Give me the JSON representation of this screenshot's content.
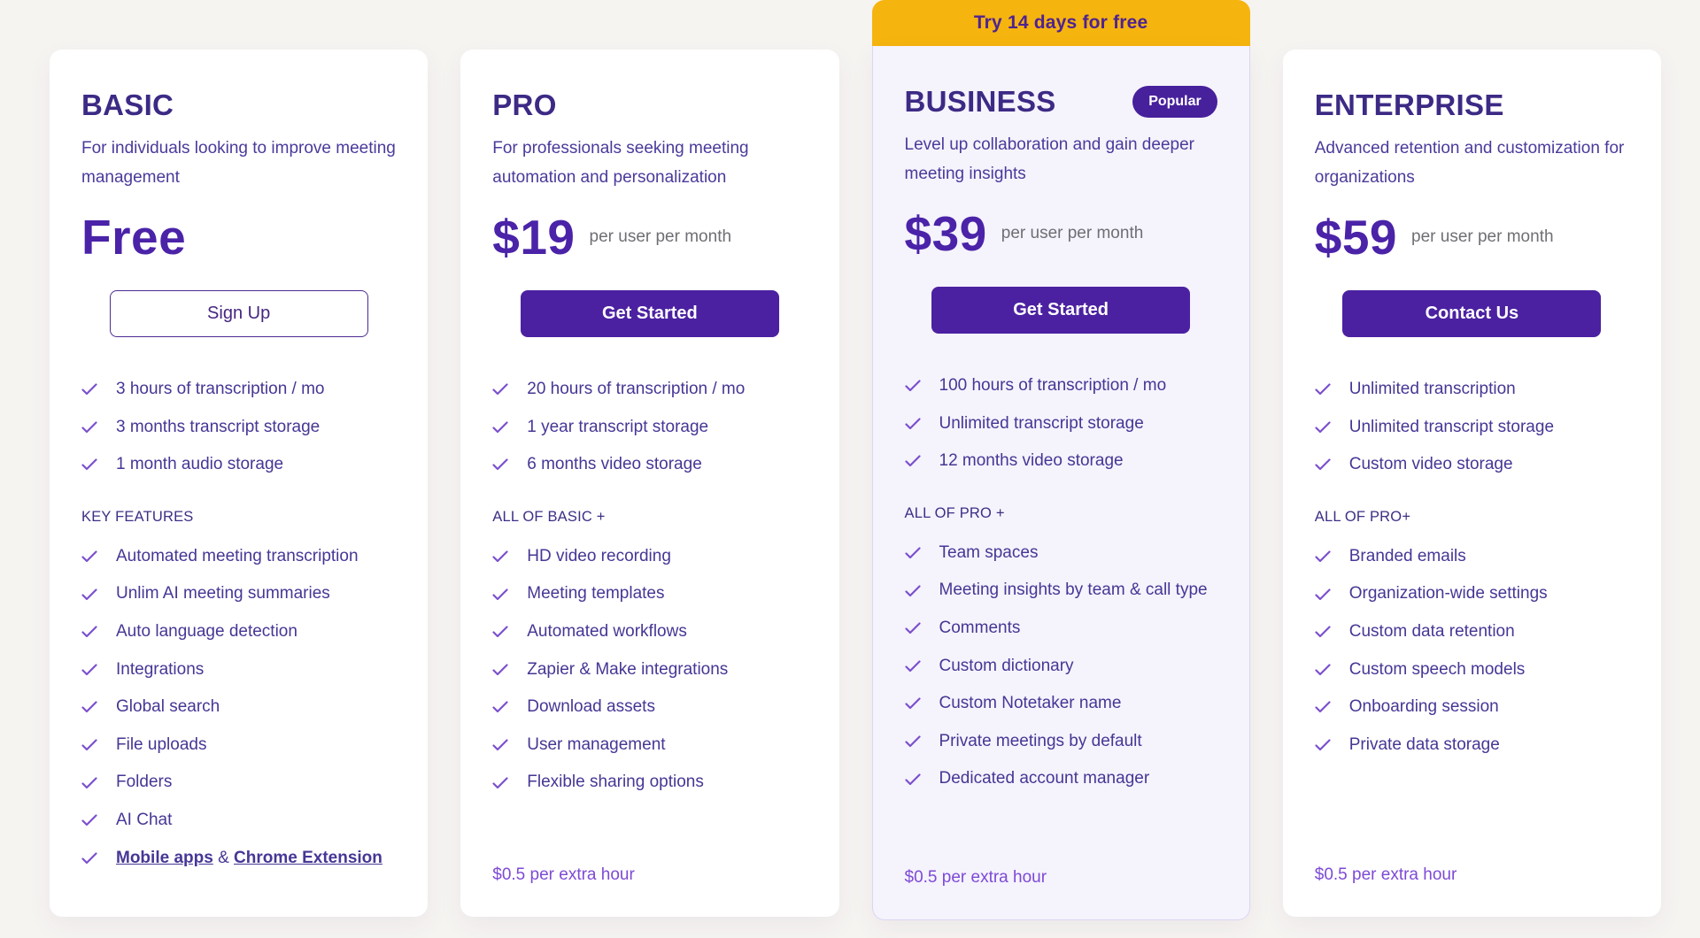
{
  "page": {
    "background": "#f6f4f1"
  },
  "colors": {
    "accent_purple": "#4b21a1",
    "title_purple": "#3d2a85",
    "check_purple": "#7b50ce",
    "banner_yellow": "#f6b40e",
    "highlight_card_bg": "#f5f3fc",
    "extra_note_purple": "#7d4ad6"
  },
  "icons": {
    "check": "check-icon"
  },
  "cards": [
    {
      "id": "basic",
      "name": "BASIC",
      "badge": "",
      "trial_banner": "",
      "description": "For individuals looking to improve meeting management",
      "price": "Free",
      "period": "",
      "cta": {
        "label": "Sign Up",
        "style": "outline"
      },
      "tier_features": [
        "3 hours of transcription / mo",
        "3 months transcript storage",
        "1 month audio storage"
      ],
      "section_label": "KEY FEATURES",
      "key_features": [
        "Automated meeting transcription",
        "Unlim AI meeting summaries",
        "Auto language detection",
        "Integrations",
        "Global search",
        "File uploads",
        "Folders",
        "AI Chat",
        {
          "parts": [
            {
              "text": "Mobile apps",
              "link": true
            },
            {
              "text": " & ",
              "link": false
            },
            {
              "text": "Chrome Extension",
              "link": true
            }
          ]
        }
      ],
      "extra_note": ""
    },
    {
      "id": "pro",
      "name": "PRO",
      "badge": "",
      "trial_banner": "",
      "description": "For professionals seeking meeting automation and personalization",
      "price": "$19",
      "period": "per user per month",
      "cta": {
        "label": "Get Started",
        "style": "solid"
      },
      "tier_features": [
        "20 hours of transcription / mo",
        "1 year transcript storage",
        "6 months video storage"
      ],
      "section_label": "ALL OF BASIC +",
      "key_features": [
        "HD video recording",
        "Meeting templates",
        "Automated workflows",
        "Zapier & Make integrations",
        "Download assets",
        "User management",
        "Flexible sharing options"
      ],
      "extra_note": "$0.5 per extra hour"
    },
    {
      "id": "business",
      "name": "BUSINESS",
      "badge": "Popular",
      "trial_banner": "Try 14 days for free",
      "description": "Level up collaboration and gain deeper meeting insights",
      "price": "$39",
      "period": "per user per month",
      "cta": {
        "label": "Get Started",
        "style": "solid"
      },
      "tier_features": [
        "100 hours of transcription / mo",
        "Unlimited transcript storage",
        "12 months video storage"
      ],
      "section_label": "ALL OF PRO +",
      "key_features": [
        "Team spaces",
        "Meeting insights by team & call type",
        "Comments",
        "Custom dictionary",
        "Custom Notetaker name",
        "Private meetings by default",
        "Dedicated account manager"
      ],
      "extra_note": "$0.5 per extra hour"
    },
    {
      "id": "enterprise",
      "name": "ENTERPRISE",
      "badge": "",
      "trial_banner": "",
      "description": "Advanced retention and customization for organizations",
      "price": "$59",
      "period": "per user per month",
      "cta": {
        "label": "Contact Us",
        "style": "solid"
      },
      "tier_features": [
        "Unlimited transcription",
        "Unlimited transcript storage",
        "Custom video storage"
      ],
      "section_label": "ALL OF PRO+",
      "key_features": [
        "Branded emails",
        "Organization-wide settings",
        "Custom data retention",
        "Custom speech models",
        "Onboarding session",
        "Private data storage"
      ],
      "extra_note": "$0.5 per extra hour"
    }
  ]
}
